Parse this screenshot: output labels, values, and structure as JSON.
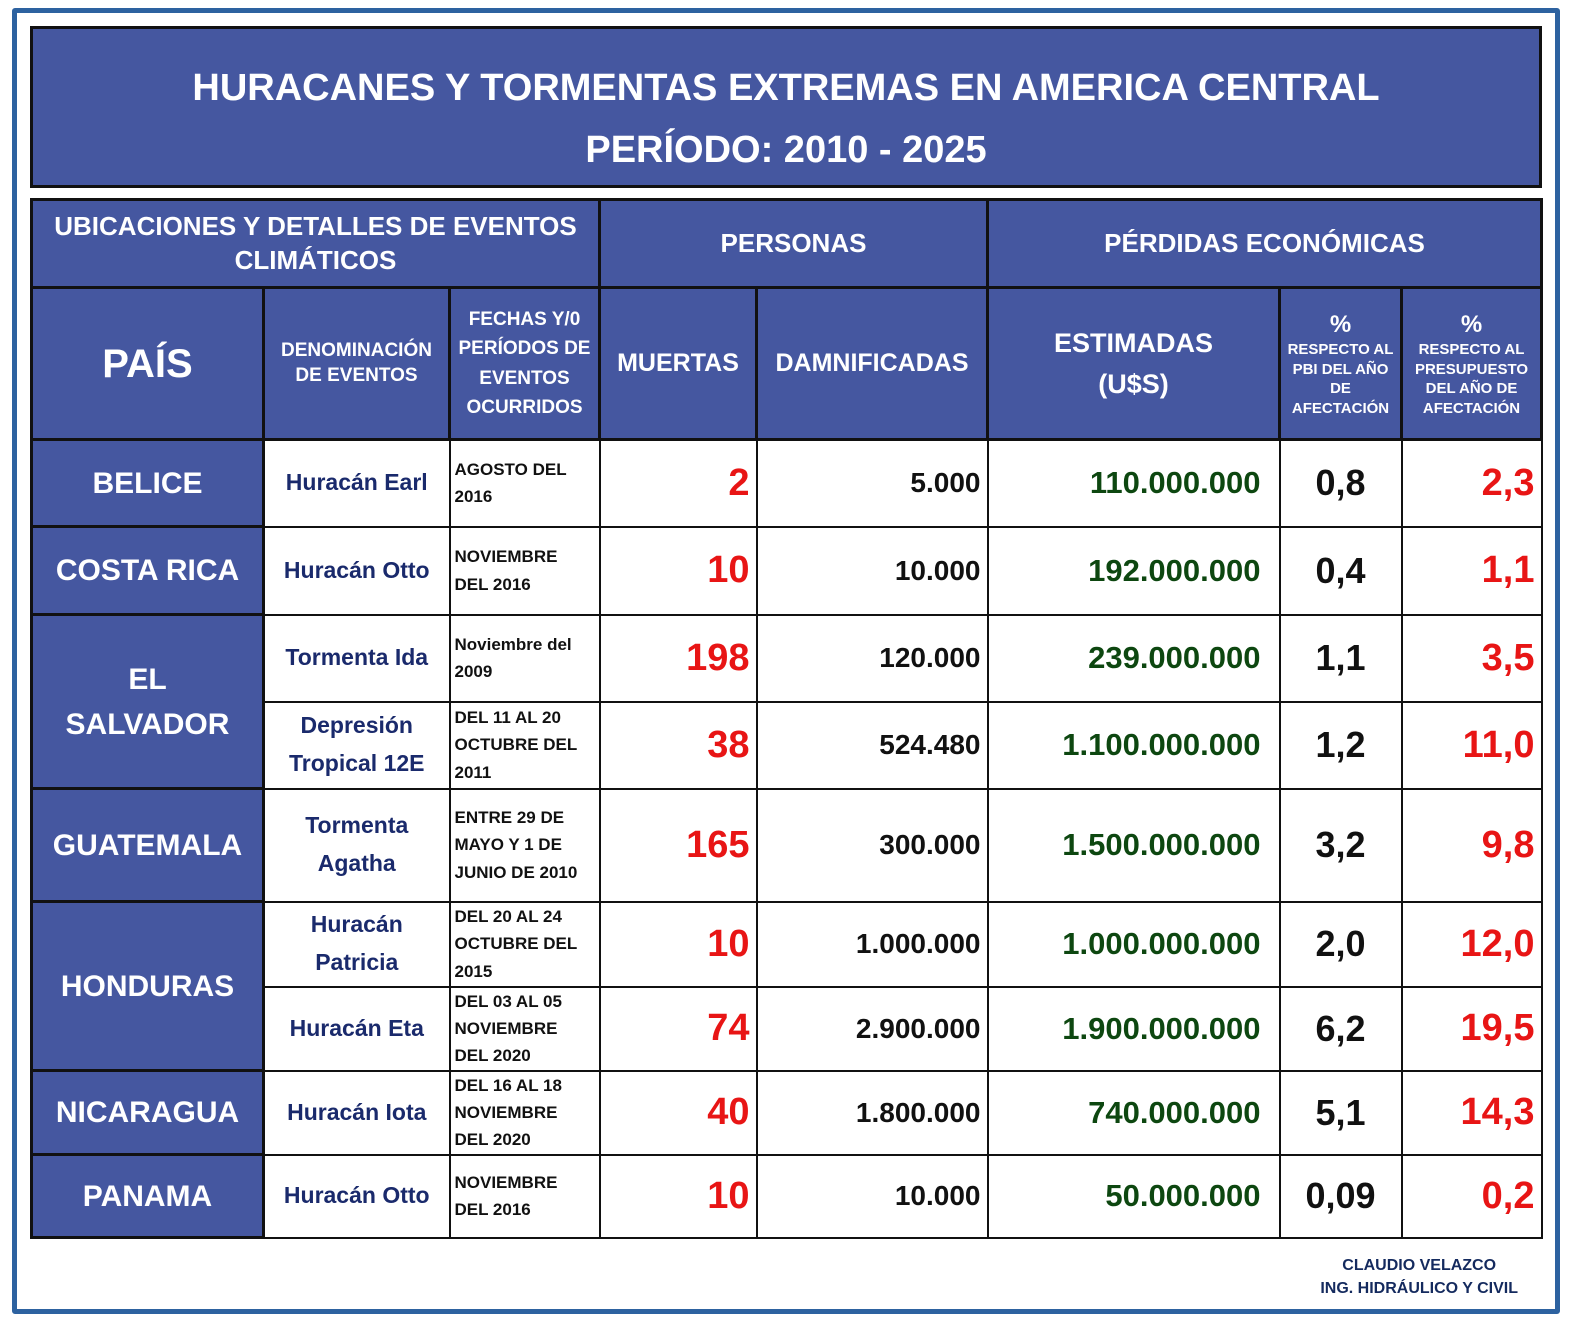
{
  "title": {
    "line1": "HURACANES Y TORMENTAS EXTREMAS EN AMERICA CENTRAL",
    "line2": "PERÍODO: 2010 - 2025"
  },
  "headers": {
    "group_location": "UBICACIONES Y DETALLES DE EVENTOS CLIMÁTICOS",
    "group_people": "PERSONAS",
    "group_economic": "PÉRDIDAS ECONÓMICAS",
    "pais": "PAÍS",
    "denominacion": "DENOMINACIÓN DE EVENTOS",
    "fechas": "FECHAS Y/0 PERÍODOS DE EVENTOS OCURRIDOS",
    "muertas": "MUERTAS",
    "damnificadas": "DAMNIFICADAS",
    "estimadas": "ESTIMADAS (U$S)",
    "pct_symbol": "%",
    "pct_pbi": "RESPECTO AL PBI DEL AÑO DE AFECTACIÓN",
    "pct_presupuesto": "RESPECTO AL PRESUPUESTO DEL AÑO DE AFECTACIÓN"
  },
  "countries": [
    {
      "name": "BELICE",
      "events": [
        {
          "name": "Huracán Earl",
          "date": "AGOSTO DEL 2016",
          "dead": "2",
          "affected": "5.000",
          "losses": "110.000.000",
          "pct_pbi": "0,8",
          "pct_budget": "2,3"
        }
      ]
    },
    {
      "name": "COSTA RICA",
      "events": [
        {
          "name": "Huracán Otto",
          "date": "NOVIEMBRE DEL 2016",
          "dead": "10",
          "affected": "10.000",
          "losses": "192.000.000",
          "pct_pbi": "0,4",
          "pct_budget": "1,1"
        }
      ]
    },
    {
      "name": "EL SALVADOR",
      "events": [
        {
          "name": "Tormenta Ida",
          "date": "Noviembre del 2009",
          "dead": "198",
          "affected": "120.000",
          "losses": "239.000.000",
          "pct_pbi": "1,1",
          "pct_budget": "3,5"
        },
        {
          "name": "Depresión Tropical 12E",
          "date": "DEL 11 AL 20 OCTUBRE DEL 2011",
          "dead": "38",
          "affected": "524.480",
          "losses": "1.100.000.000",
          "pct_pbi": "1,2",
          "pct_budget": "11,0"
        }
      ]
    },
    {
      "name": "GUATEMALA",
      "events": [
        {
          "name": "Tormenta Agatha",
          "date": "ENTRE 29 DE MAYO Y 1 DE JUNIO DE 2010",
          "dead": "165",
          "affected": "300.000",
          "losses": "1.500.000.000",
          "pct_pbi": "3,2",
          "pct_budget": "9,8"
        }
      ]
    },
    {
      "name": "HONDURAS",
      "events": [
        {
          "name": "Huracán Patricia",
          "date": "DEL 20 AL 24 OCTUBRE DEL 2015",
          "dead": "10",
          "affected": "1.000.000",
          "losses": "1.000.000.000",
          "pct_pbi": "2,0",
          "pct_budget": "12,0"
        },
        {
          "name": "Huracán Eta",
          "date": "DEL 03 AL 05 NOVIEMBRE DEL 2020",
          "dead": "74",
          "affected": "2.900.000",
          "losses": "1.900.000.000",
          "pct_pbi": "6,2",
          "pct_budget": "19,5"
        }
      ]
    },
    {
      "name": "NICARAGUA",
      "events": [
        {
          "name": "Huracán Iota",
          "date": "DEL 16 AL 18 NOVIEMBRE DEL 2020",
          "dead": "40",
          "affected": "1.800.000",
          "losses": "740.000.000",
          "pct_pbi": "5,1",
          "pct_budget": "14,3"
        }
      ]
    },
    {
      "name": "PANAMA",
      "events": [
        {
          "name": "Huracán Otto",
          "date": "NOVIEMBRE DEL 2016",
          "dead": "10",
          "affected": "10.000",
          "losses": "50.000.000",
          "pct_pbi": "0,09",
          "pct_budget": "0,2"
        }
      ]
    }
  ],
  "footer": {
    "author": "CLAUDIO VELAZCO",
    "profession": "ING. HIDRÁULICO Y CIVIL"
  },
  "colors": {
    "header_blue": "#4557a0",
    "frame_blue": "#2d62a0",
    "red": "#e81515",
    "green": "#0d4710",
    "navy": "#1a2a6c"
  }
}
